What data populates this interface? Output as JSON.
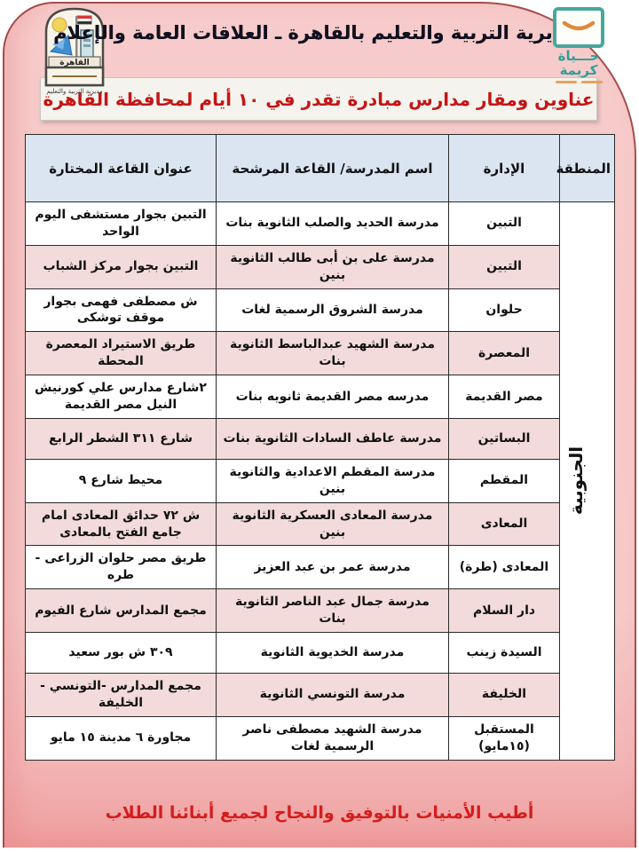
{
  "header": {
    "org_title": "مديرية التربية والتعليم بالقاهرة ـ العلاقات العامة والإعلام",
    "doc_title": "عناوين ومقار مدارس مبادرة تقدر في ١٠ أيام لمحافظة القاهرة"
  },
  "logos": {
    "cairo": {
      "banner": "القاهرة",
      "caption": "مديرية التربية والتعليم"
    },
    "hayah_karima": {
      "line1": "حـــياة",
      "line2": "كريمة"
    }
  },
  "table": {
    "headers": {
      "region": "المنطقة",
      "district": "الإدارة",
      "school": "اسم المدرسة/ القاعة المرشحة",
      "address": "عنوان القاعة المختارة"
    },
    "region_value": "الجنوبية",
    "rows": [
      {
        "district": "التبين",
        "school": "مدرسة الحديد والصلب الثانوية بنات",
        "address": "التبين بجوار مستشفى اليوم الواحد"
      },
      {
        "district": "التبين",
        "school": "مدرسة على بن أبى طالب الثانوية بنين",
        "address": "التبين بجوار مركز الشباب"
      },
      {
        "district": "حلوان",
        "school": "مدرسة الشروق الرسمية لغات",
        "address": "ش مصطفى فهمى بجوار موقف توشكى"
      },
      {
        "district": "المعصرة",
        "school": "مدرسة الشهيد عبدالباسط الثانوية بنات",
        "address": "طريق الاستيراد المعصرة المحطة"
      },
      {
        "district": "مصر القديمة",
        "school": "مدرسه مصر القديمة ثانويه بنات",
        "address": "٢شارع مدارس علي كورنيش النيل مصر القديمة"
      },
      {
        "district": "البساتين",
        "school": "مدرسة عاطف السادات الثانوية بنات",
        "address": "شارع ٣١١ الشطر الرابع"
      },
      {
        "district": "المقطم",
        "school": "مدرسة المقطم الاعدادية والثانوية بنين",
        "address": "محيط شارع ٩"
      },
      {
        "district": "المعادى",
        "school": "مدرسة المعادى العسكرية الثانوية بنين",
        "address": "ش ٧٢ حدائق المعادى امام جامع الفتح بالمعادى"
      },
      {
        "district": "المعادى (طرة)",
        "school": "مدرسة عمر بن عبد العزيز",
        "address": "طريق مصر حلوان الزراعى - طره"
      },
      {
        "district": "دار السلام",
        "school": "مدرسة جمال عبد الناصر الثانوية بنات",
        "address": "مجمع المدارس شارع الفيوم"
      },
      {
        "district": "السيدة زينب",
        "school": "مدرسة الخديوية الثانوية",
        "address": "٣٠٩ ش بور سعيد"
      },
      {
        "district": "الخليفة",
        "school": "مدرسة التونسي الثانوية",
        "address": "مجمع المدارس -التونسي - الخليفة"
      },
      {
        "district": "المستقبل (١٥مايو)",
        "school": "مدرسة الشهيد مصطفى ناصر الرسمية لغات",
        "address": "مجاورة ٦ مدينة ١٥ مايو"
      }
    ]
  },
  "footer": {
    "wish": "أطيب الأمنيات بالتوفيق والنجاح لجميع أبنائنا الطلاب"
  },
  "colors": {
    "page_pink": "#f6caca",
    "edge_salmon": "#ef9e9e",
    "arc_border": "#a14e4e",
    "header_blue": "#dbe5f1",
    "row_pink": "#f2dbda",
    "accent_red": "#c51515",
    "teal_logo": "#2f9e96",
    "orange_logo": "#e8a05a"
  }
}
